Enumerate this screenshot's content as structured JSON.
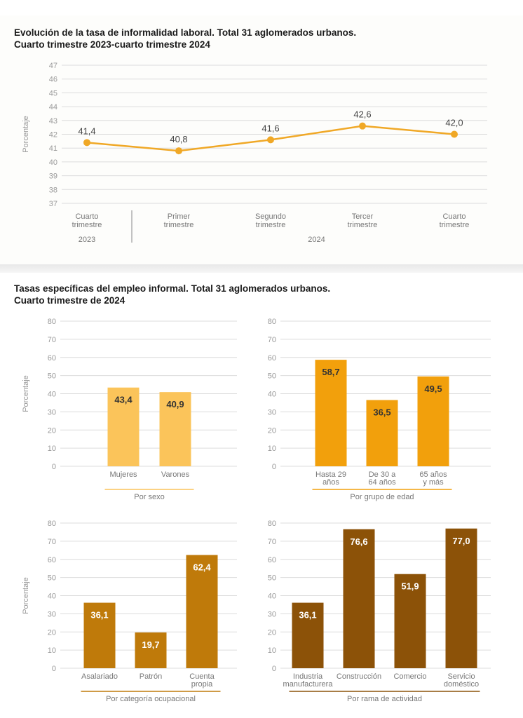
{
  "chart_data": [
    {
      "type": "line",
      "title": "Evolución de la tasa de informalidad laboral. Total 31 aglomerados urbanos.",
      "subtitle": "Cuarto trimestre 2023-cuarto trimestre 2024",
      "ylabel": "Porcentaje",
      "ylim": [
        37,
        47
      ],
      "yticks": [
        37,
        38,
        39,
        40,
        41,
        42,
        43,
        44,
        45,
        46,
        47
      ],
      "categories": [
        [
          "Cuarto",
          "trimestre"
        ],
        [
          "Primer",
          "trimestre"
        ],
        [
          "Segundo",
          "trimestre"
        ],
        [
          "Tercer",
          "trimestre"
        ],
        [
          "Cuarto",
          "trimestre"
        ]
      ],
      "groups": [
        {
          "label": "2023",
          "span": [
            0,
            0
          ]
        },
        {
          "label": "2024",
          "span": [
            1,
            4
          ]
        }
      ],
      "values": [
        41.4,
        40.8,
        41.6,
        42.6,
        42.0
      ],
      "value_labels": [
        "41,4",
        "40,8",
        "41,6",
        "42,6",
        "42,0"
      ],
      "grid": true,
      "color": "#f0a826"
    },
    {
      "type": "bar",
      "section_title": "Tasas específicas del empleo informal. Total 31 aglomerados urbanos.",
      "section_subtitle": "Cuarto trimestre de 2024",
      "ylabel": "Porcentaje",
      "ylim": [
        0,
        80
      ],
      "yticks": [
        0,
        10,
        20,
        30,
        40,
        50,
        60,
        70,
        80
      ],
      "group_label": "Por sexo",
      "categories": [
        [
          "Mujeres"
        ],
        [
          "Varones"
        ]
      ],
      "values": [
        43.4,
        40.9
      ],
      "value_labels": [
        "43,4",
        "40,9"
      ],
      "color": "#fbc45a",
      "label_color": "#333333"
    },
    {
      "type": "bar",
      "ylim": [
        0,
        80
      ],
      "yticks": [
        0,
        10,
        20,
        30,
        40,
        50,
        60,
        70,
        80
      ],
      "group_label": "Por grupo de edad",
      "categories": [
        [
          "Hasta 29",
          "años"
        ],
        [
          "De 30 a",
          "64 años"
        ],
        [
          "65 años",
          "y más"
        ]
      ],
      "values": [
        58.7,
        36.5,
        49.5
      ],
      "value_labels": [
        "58,7",
        "36,5",
        "49,5"
      ],
      "color": "#f2a00c",
      "label_color": "#333333"
    },
    {
      "type": "bar",
      "ylabel": "Porcentaje",
      "ylim": [
        0,
        80
      ],
      "yticks": [
        0,
        10,
        20,
        30,
        40,
        50,
        60,
        70,
        80
      ],
      "group_label": "Por categoría ocupacional",
      "categories": [
        [
          "Asalariado"
        ],
        [
          "Patrón"
        ],
        [
          "Cuenta",
          "propia"
        ]
      ],
      "values": [
        36.1,
        19.7,
        62.4
      ],
      "value_labels": [
        "36,1",
        "19,7",
        "62,4"
      ],
      "color": "#bf7a0a",
      "label_color": "#ffffff"
    },
    {
      "type": "bar",
      "ylim": [
        0,
        80
      ],
      "yticks": [
        0,
        10,
        20,
        30,
        40,
        50,
        60,
        70,
        80
      ],
      "group_label": "Por rama de actividad",
      "categories": [
        [
          "Industria",
          "manufacturera"
        ],
        [
          "Construcción"
        ],
        [
          "Comercio"
        ],
        [
          "Servicio",
          "doméstico"
        ]
      ],
      "values": [
        36.1,
        76.6,
        51.9,
        77.0
      ],
      "value_labels": [
        "36,1",
        "76,6",
        "51,9",
        "77,0"
      ],
      "color": "#8c5208",
      "label_color": "#ffffff"
    }
  ]
}
